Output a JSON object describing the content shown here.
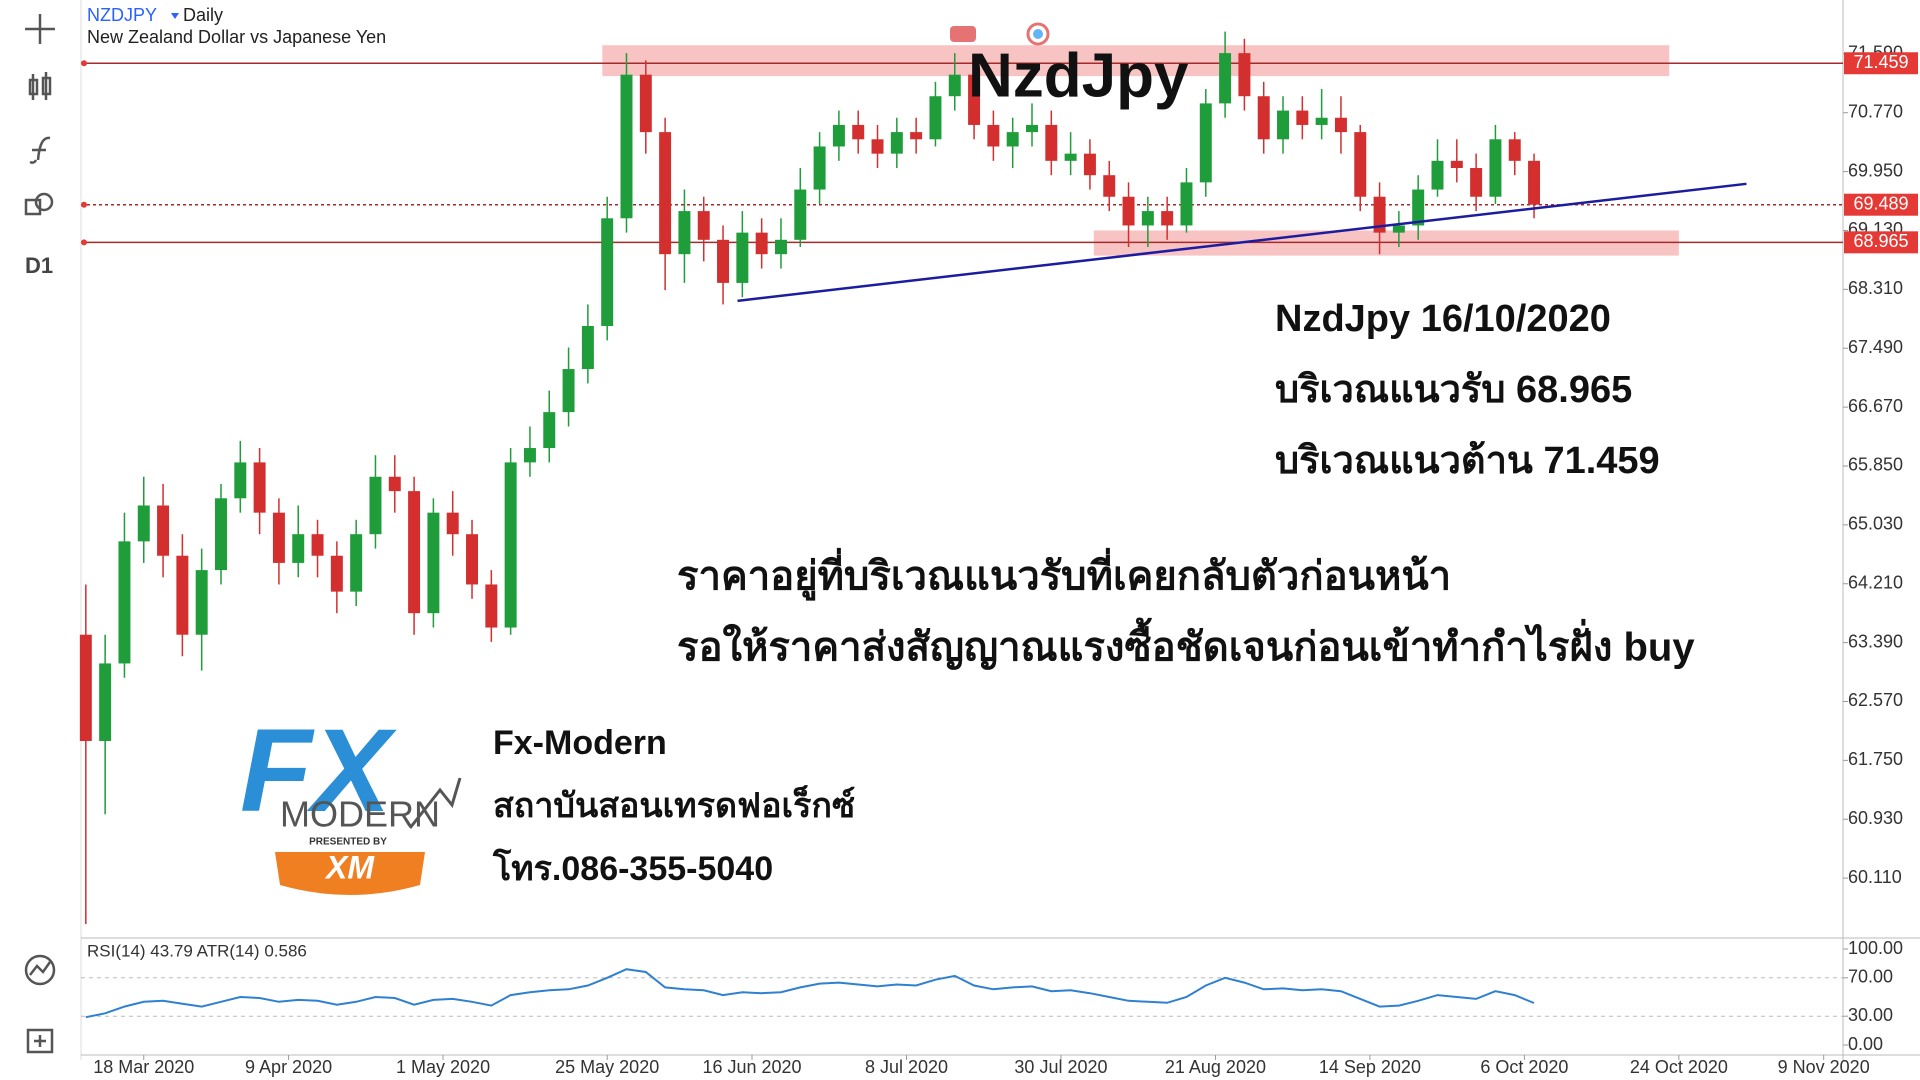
{
  "header": {
    "symbol": "NZDJPY",
    "interval": "Daily",
    "description": "New Zealand Dollar vs Japanese Yen"
  },
  "toolbar": {
    "interval": "D1"
  },
  "chart_data": [
    {
      "type": "candlestick",
      "title": "NzdJpy",
      "x": [
        0,
        2,
        4,
        6,
        8,
        10,
        12,
        14,
        16,
        18,
        20,
        22,
        24,
        26,
        28,
        30,
        32,
        34,
        36,
        38,
        40,
        42,
        44,
        46,
        48,
        50,
        52,
        54,
        56,
        58,
        60,
        62,
        64,
        66,
        68,
        70,
        72,
        74,
        76,
        78,
        80,
        82,
        84,
        86,
        88,
        90,
        92,
        94,
        96,
        98,
        100,
        102,
        104,
        106,
        108,
        110,
        112,
        114,
        116,
        118,
        120,
        122,
        124,
        126,
        128,
        130,
        132,
        134,
        136,
        138,
        140,
        142,
        144,
        146,
        148,
        150
      ],
      "open": [
        63.5,
        62.02,
        63.1,
        64.8,
        65.3,
        64.6,
        63.5,
        64.4,
        65.4,
        65.9,
        65.2,
        64.5,
        64.9,
        64.6,
        64.1,
        64.9,
        65.7,
        65.5,
        63.8,
        65.2,
        64.9,
        64.2,
        63.6,
        65.9,
        66.1,
        66.6,
        67.2,
        67.8,
        69.3,
        71.3,
        70.5,
        68.8,
        69.4,
        69.0,
        68.4,
        69.1,
        68.8,
        69.0,
        69.7,
        70.3,
        70.6,
        70.4,
        70.2,
        70.5,
        70.4,
        71.0,
        71.3,
        70.6,
        70.3,
        70.5,
        70.6,
        70.1,
        70.2,
        69.9,
        69.6,
        69.2,
        69.4,
        69.2,
        69.8,
        70.9,
        71.6,
        71.0,
        70.4,
        70.8,
        70.6,
        70.7,
        70.5,
        69.6,
        69.1,
        69.2,
        69.7,
        70.1,
        70.0,
        69.6,
        70.4,
        70.1
      ],
      "high": [
        64.2,
        63.5,
        65.2,
        65.7,
        65.6,
        64.9,
        64.7,
        65.6,
        66.2,
        66.1,
        65.4,
        65.3,
        65.1,
        64.8,
        65.1,
        66.0,
        66.0,
        65.7,
        65.4,
        65.5,
        65.1,
        64.4,
        66.1,
        66.4,
        66.9,
        67.5,
        68.1,
        69.6,
        71.6,
        71.5,
        70.7,
        69.7,
        69.6,
        69.2,
        69.4,
        69.3,
        69.3,
        70.0,
        70.5,
        70.8,
        70.8,
        70.6,
        70.7,
        70.7,
        71.2,
        71.6,
        71.4,
        70.8,
        70.7,
        70.9,
        70.8,
        70.5,
        70.4,
        70.1,
        69.8,
        69.6,
        69.6,
        70.0,
        71.1,
        71.9,
        71.8,
        71.2,
        71.0,
        71.0,
        71.1,
        71.0,
        70.6,
        69.8,
        69.4,
        69.9,
        70.4,
        70.4,
        70.2,
        70.6,
        70.5,
        70.2
      ],
      "low": [
        59.47,
        61.0,
        62.9,
        64.5,
        64.3,
        63.2,
        63.0,
        64.2,
        65.2,
        64.9,
        64.2,
        64.3,
        64.3,
        63.8,
        63.9,
        64.7,
        65.2,
        63.5,
        63.6,
        64.6,
        64.0,
        63.4,
        63.5,
        65.7,
        65.9,
        66.4,
        67.0,
        67.6,
        69.1,
        70.2,
        68.3,
        68.4,
        68.7,
        68.1,
        68.2,
        68.6,
        68.6,
        68.9,
        69.5,
        70.1,
        70.2,
        70.0,
        70.0,
        70.2,
        70.3,
        70.8,
        70.4,
        70.1,
        70.0,
        70.3,
        69.9,
        69.9,
        69.7,
        69.4,
        68.9,
        68.9,
        69.0,
        69.1,
        69.6,
        70.7,
        70.8,
        70.2,
        70.2,
        70.4,
        70.4,
        70.2,
        69.4,
        68.8,
        68.9,
        69.0,
        69.6,
        69.8,
        69.4,
        69.5,
        69.9,
        69.3
      ],
      "close": [
        62.02,
        63.1,
        64.8,
        65.3,
        64.6,
        63.5,
        64.4,
        65.4,
        65.9,
        65.2,
        64.5,
        64.9,
        64.6,
        64.1,
        64.9,
        65.7,
        65.5,
        63.8,
        65.2,
        64.9,
        64.2,
        63.6,
        65.9,
        66.1,
        66.6,
        67.2,
        67.8,
        69.3,
        71.3,
        70.5,
        68.8,
        69.4,
        69.0,
        68.4,
        69.1,
        68.8,
        69.0,
        69.7,
        70.3,
        70.6,
        70.4,
        70.2,
        70.5,
        70.4,
        71.0,
        71.3,
        70.6,
        70.3,
        70.5,
        70.6,
        70.1,
        70.2,
        69.9,
        69.6,
        69.2,
        69.4,
        69.2,
        69.8,
        70.9,
        71.6,
        71.0,
        70.4,
        70.8,
        70.6,
        70.7,
        70.5,
        69.6,
        69.1,
        69.2,
        69.7,
        70.1,
        70.0,
        69.6,
        70.4,
        70.1,
        69.489
      ],
      "up_color": "#1f9d3a",
      "down_color": "#d32f2f",
      "xlim": [
        -0.5,
        182
      ],
      "xticks": [
        {
          "value": 6,
          "label": "18 Mar 2020"
        },
        {
          "value": 21,
          "label": "9 Apr 2020"
        },
        {
          "value": 37,
          "label": "1 May 2020"
        },
        {
          "value": 54,
          "label": "25 May 2020"
        },
        {
          "value": 69,
          "label": "16 Jun 2020"
        },
        {
          "value": 85,
          "label": "8 Jul 2020"
        },
        {
          "value": 101,
          "label": "30 Jul 2020"
        },
        {
          "value": 117,
          "label": "21 Aug 2020"
        },
        {
          "value": 133,
          "label": "14 Sep 2020"
        },
        {
          "value": 149,
          "label": "6 Oct 2020"
        },
        {
          "value": 165,
          "label": "24 Oct 2020"
        },
        {
          "value": 180,
          "label": "9 Nov 2020"
        }
      ],
      "ylim": [
        59.29,
        72.34
      ],
      "yticks": [
        {
          "value": 71.59,
          "label": "71.590"
        },
        {
          "value": 70.77,
          "label": "70.770"
        },
        {
          "value": 69.95,
          "label": "69.950"
        },
        {
          "value": 69.13,
          "label": "69.130"
        },
        {
          "value": 68.31,
          "label": "68.310"
        },
        {
          "value": 67.49,
          "label": "67.490"
        },
        {
          "value": 66.67,
          "label": "66.670"
        },
        {
          "value": 65.85,
          "label": "65.850"
        },
        {
          "value": 65.03,
          "label": "65.030"
        },
        {
          "value": 64.21,
          "label": "64.210"
        },
        {
          "value": 63.39,
          "label": "63.390"
        },
        {
          "value": 62.57,
          "label": "62.570"
        },
        {
          "value": 61.75,
          "label": "61.750"
        },
        {
          "value": 60.93,
          "label": "60.930"
        },
        {
          "value": 60.11,
          "label": "60.110"
        }
      ],
      "levels": [
        {
          "value": 71.459,
          "label": "71.459",
          "color": "#a52a2a",
          "style": "solid"
        },
        {
          "value": 69.489,
          "label": "69.489",
          "color": "#a52a2a",
          "style": "dashed"
        },
        {
          "value": 68.965,
          "label": "68.965",
          "color": "#a52a2a",
          "style": "solid"
        }
      ],
      "level_label_color": "#e53935",
      "zones": [
        {
          "x": [
            53.5,
            164
          ],
          "y": [
            71.28,
            71.71
          ]
        },
        {
          "x": [
            104.4,
            165
          ],
          "y": [
            68.78,
            69.13
          ]
        }
      ],
      "zone_color": "#f6b9b9",
      "trendline": {
        "x": [
          67.5,
          172
        ],
        "y": [
          68.15,
          69.78
        ],
        "color": "#1c1ca0"
      },
      "annotations": [
        "NzdJpy 16/10/2020",
        "บริเวณแนวรับ 68.965",
        "บริเวณแนวต้าน 71.459",
        "ราคาอยู่ที่บริเวณแนวรับที่เคยกลับตัวก่อนหน้า",
        "รอให้ราคาส่งสัญญาณแรงซื้อชัดเจนก่อนเข้าทำกำไรฝั่ง buy"
      ]
    },
    {
      "type": "line",
      "title": "RSI(14) 43.79 ATR(14) 0.586",
      "color": "#2f80d0",
      "x": [
        0,
        2,
        4,
        6,
        8,
        10,
        12,
        14,
        16,
        18,
        20,
        22,
        24,
        26,
        28,
        30,
        32,
        34,
        36,
        38,
        40,
        42,
        44,
        46,
        48,
        50,
        52,
        54,
        56,
        58,
        60,
        62,
        64,
        66,
        68,
        70,
        72,
        74,
        76,
        78,
        80,
        82,
        84,
        86,
        88,
        90,
        92,
        94,
        96,
        98,
        100,
        102,
        104,
        106,
        108,
        110,
        112,
        114,
        116,
        118,
        120,
        122,
        124,
        126,
        128,
        130,
        132,
        134,
        136,
        138,
        140,
        142,
        144,
        146,
        148,
        150
      ],
      "values": [
        29,
        33,
        40,
        45,
        46,
        43,
        40,
        45,
        50,
        49,
        45,
        47,
        46,
        42,
        45,
        50,
        49,
        42,
        47,
        48,
        45,
        41,
        52,
        55,
        57,
        58,
        62,
        70,
        79,
        76,
        60,
        58,
        57,
        52,
        55,
        54,
        55,
        60,
        64,
        65,
        63,
        61,
        63,
        62,
        68,
        72,
        62,
        58,
        60,
        61,
        56,
        57,
        54,
        50,
        46,
        45,
        44,
        50,
        62,
        70,
        65,
        58,
        59,
        57,
        58,
        56,
        48,
        40,
        41,
        46,
        52,
        50,
        48,
        56,
        52,
        43.79
      ],
      "xlim": [
        -0.5,
        182
      ],
      "ylim": [
        0,
        100
      ],
      "yticks": [
        {
          "value": 100,
          "label": "100.00"
        },
        {
          "value": 70,
          "label": "70.00"
        },
        {
          "value": 30,
          "label": "30.00"
        },
        {
          "value": 0,
          "label": "0.00"
        }
      ],
      "dashed_ticks": [
        {
          "value": 70,
          "label": "70.00"
        },
        {
          "value": 30,
          "label": "30.00"
        }
      ]
    }
  ],
  "branding": {
    "logo_mark": "FX",
    "logo_word": "MODERN",
    "presented_by": "PRESENTED BY",
    "partner": "XM",
    "name": "Fx-Modern",
    "tagline": "สถาบันสอนเทรดฟอเร็กซ์",
    "phone": "โทร.086-355-5040"
  }
}
